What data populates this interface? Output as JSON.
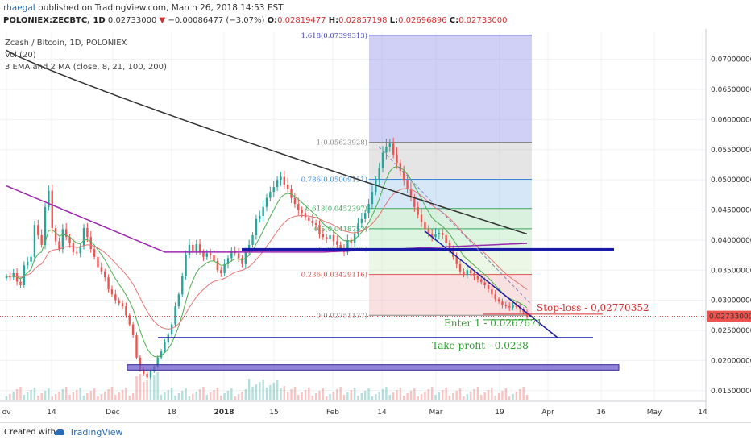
{
  "header": {
    "author": "rhaegal",
    "published": "published on TradingView.com, March 26, 2018 14:53 EST",
    "symbol": "POLONIEX:ZECBTC, 1D",
    "last": "0.02733000",
    "change": "−0.00086477 (−3.07%)",
    "o_label": "O:",
    "o_value": "0.02819477",
    "h_label": "H:",
    "h_value": "0.02857198",
    "l_label": "L:",
    "l_value": "0.02696896",
    "c_label": "C:",
    "c_value": "0.02733000"
  },
  "legend": {
    "line1": "Zcash / Bitcoin, 1D, POLONIEX",
    "line2": "Vol (20)",
    "line3": "3 EMA and 2 MA (close, 8, 21, 100, 200)"
  },
  "colors": {
    "up": "#26a69a",
    "down": "#ef5350",
    "ema_fast": "#4caf50",
    "ema_mid": "#e57373",
    "ma100": "#9c27b0",
    "ma200": "#333333",
    "fib_blue": "#6c6cd9",
    "annotation_red": "#d32f2f",
    "annotation_green": "#2e9e2e",
    "level_line": "#1a1aa8"
  },
  "chart_data": {
    "type": "candlestick",
    "y_axis_labels": [
      "0.07000000",
      "0.06500000",
      "0.06000000",
      "0.05500000",
      "0.05000000",
      "0.04500000",
      "0.04000000",
      "0.03500000",
      "0.03000000",
      "0.02500000",
      "0.02000000",
      "0.01500000"
    ],
    "y_ticks": [
      0.07,
      0.065,
      0.06,
      0.055,
      0.05,
      0.045,
      0.04,
      0.035,
      0.03,
      0.025,
      0.02,
      0.015
    ],
    "ylim": [
      0.0135,
      0.0745
    ],
    "x_axis_labels": [
      "ov",
      "14",
      "Dec",
      "18",
      "2018",
      "15",
      "Feb",
      "14",
      "Mar",
      "19",
      "Apr",
      "16",
      "May",
      "14"
    ],
    "current_price_label": "0.02733000",
    "fibonacci": [
      {
        "label": "1.618(0.07399313)",
        "level": 1.618,
        "price": 0.07399313
      },
      {
        "label": "1(0.05623928)",
        "level": 1,
        "price": 0.05623928
      },
      {
        "label": "0.786(0.05009151)",
        "level": 0.786,
        "price": 0.05009151
      },
      {
        "label": "0.618(0.0452397)",
        "level": 0.618,
        "price": 0.0452397
      },
      {
        "label": "0.5(0.0418753)",
        "level": 0.5,
        "price": 0.0418753
      },
      {
        "label": "0.382(0.0385)",
        "level": 0.382,
        "price": 0.0385
      },
      {
        "label": "0.236(0.03429116)",
        "level": 0.236,
        "price": 0.03429116
      },
      {
        "label": "0(0.02751137)",
        "level": 0,
        "price": 0.02751137
      }
    ],
    "annotations": {
      "stop_loss": "Stop-loss - 0,02770352",
      "enter": "Enter 1 - 0.0267671",
      "take_profit": "Take-profit - 0.0238"
    },
    "levels": {
      "resistance": 0.0384,
      "take_profit": 0.0238,
      "support_zone": [
        0.0184,
        0.0193
      ]
    },
    "closes": [
      0.034,
      0.0338,
      0.0345,
      0.0331,
      0.0325,
      0.0358,
      0.0364,
      0.0372,
      0.0425,
      0.0408,
      0.0392,
      0.0455,
      0.0482,
      0.042,
      0.0398,
      0.0385,
      0.0418,
      0.0405,
      0.0395,
      0.038,
      0.0378,
      0.039,
      0.042,
      0.0405,
      0.0385,
      0.0372,
      0.0355,
      0.0348,
      0.0338,
      0.0318,
      0.031,
      0.03,
      0.0295,
      0.029,
      0.0275,
      0.026,
      0.0242,
      0.0205,
      0.0185,
      0.0178,
      0.0172,
      0.0182,
      0.019,
      0.0205,
      0.0215,
      0.023,
      0.0243,
      0.026,
      0.029,
      0.031,
      0.034,
      0.0375,
      0.0392,
      0.0382,
      0.0393,
      0.038,
      0.0372,
      0.0378,
      0.0375,
      0.0365,
      0.035,
      0.0345,
      0.036,
      0.037,
      0.0382,
      0.0378,
      0.037,
      0.036,
      0.038,
      0.0392,
      0.0408,
      0.0435,
      0.044,
      0.0455,
      0.047,
      0.048,
      0.0488,
      0.05,
      0.0505,
      0.0492,
      0.0485,
      0.047,
      0.046,
      0.045,
      0.0445,
      0.0438,
      0.0432,
      0.0428,
      0.0425,
      0.041,
      0.0405,
      0.0402,
      0.0408,
      0.0398,
      0.0392,
      0.0386,
      0.038,
      0.04,
      0.0395,
      0.041,
      0.0428,
      0.0435,
      0.0445,
      0.046,
      0.048,
      0.05,
      0.052,
      0.0545,
      0.0555,
      0.056,
      0.0542,
      0.0528,
      0.0515,
      0.05,
      0.0485,
      0.047,
      0.0455,
      0.0442,
      0.043,
      0.0418,
      0.041,
      0.0405,
      0.041,
      0.0412,
      0.0408,
      0.0395,
      0.0385,
      0.0372,
      0.036,
      0.0348,
      0.0342,
      0.035,
      0.0345,
      0.034,
      0.0335,
      0.033,
      0.0325,
      0.0318,
      0.031,
      0.0302,
      0.0298,
      0.0292,
      0.029,
      0.0288,
      0.0292,
      0.0289,
      0.0285,
      0.028,
      0.0273
    ]
  },
  "footer": {
    "created": "Created with",
    "brand": "TradingView"
  }
}
